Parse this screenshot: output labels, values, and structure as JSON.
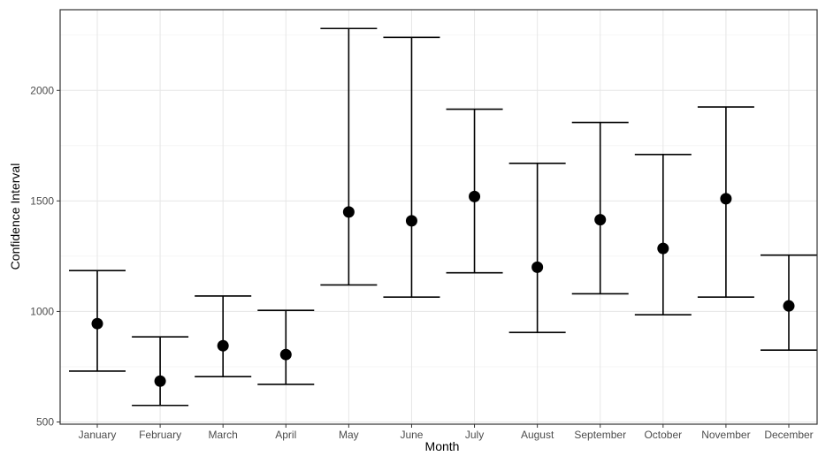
{
  "chart_data": {
    "type": "scatter",
    "title": "",
    "xlabel": "Month",
    "ylabel": "Confidence Interval",
    "categories": [
      "January",
      "February",
      "March",
      "April",
      "May",
      "June",
      "July",
      "August",
      "September",
      "October",
      "November",
      "December"
    ],
    "series": [
      {
        "values": [
          945,
          685,
          845,
          805,
          1450,
          1410,
          1520,
          1200,
          1415,
          1285,
          1510,
          1025
        ],
        "lower": [
          730,
          575,
          705,
          670,
          1120,
          1065,
          1175,
          905,
          1080,
          985,
          1065,
          825
        ],
        "upper": [
          1185,
          885,
          1070,
          1005,
          2280,
          2240,
          1915,
          1670,
          1855,
          1710,
          1925,
          1255
        ]
      }
    ],
    "yticks": [
      500,
      1000,
      1500,
      2000
    ],
    "ytick_labels": [
      "500",
      "1000",
      "1500",
      "2000"
    ],
    "ylim": [
      490,
      2365
    ],
    "grid": true,
    "errorbar_color": "#000000",
    "point_color": "#000000"
  }
}
